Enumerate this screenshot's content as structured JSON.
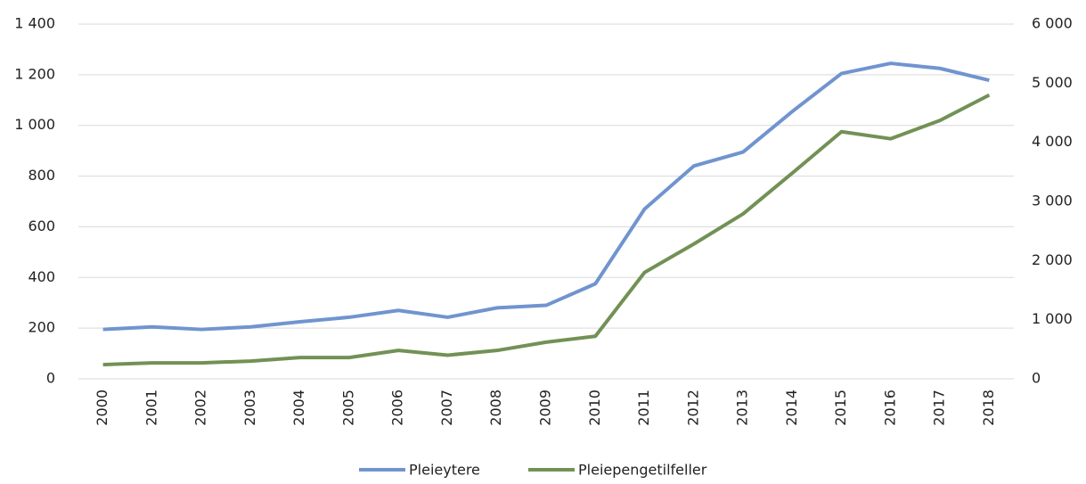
{
  "chart_data": {
    "type": "line",
    "categories": [
      "2000",
      "2001",
      "2002",
      "2003",
      "2004",
      "2005",
      "2006",
      "2007",
      "2008",
      "2009",
      "2010",
      "2011",
      "2012",
      "2013",
      "2014",
      "2015",
      "2016",
      "2017",
      "2018"
    ],
    "series": [
      {
        "name": "Pleieytere",
        "color": "#7094cf",
        "values": [
          195,
          205,
          195,
          205,
          225,
          243,
          270,
          243,
          280,
          290,
          375,
          670,
          840,
          895,
          1055,
          1205,
          1245,
          1225,
          1178
        ]
      },
      {
        "name": "Pleiepengetilfeller",
        "color": "#729155",
        "axis": "y2",
        "values": [
          240,
          270,
          270,
          300,
          360,
          360,
          480,
          400,
          480,
          620,
          720,
          1800,
          2280,
          2790,
          3480,
          4180,
          4060,
          4370,
          4800
        ]
      }
    ],
    "ylim": [
      0,
      1400
    ],
    "yticks": [
      0,
      200,
      400,
      600,
      800,
      {
        "value": 1000,
        "label": "1 000"
      },
      {
        "value": 1200,
        "label": "1 200"
      },
      {
        "value": 1400,
        "label": "1 400"
      }
    ],
    "y2lim": [
      0,
      6000
    ],
    "y2ticks": [
      0,
      {
        "value": 1000,
        "label": "1 000"
      },
      {
        "value": 2000,
        "label": "2 000"
      },
      {
        "value": 3000,
        "label": "3 000"
      },
      {
        "value": 4000,
        "label": "4 000"
      },
      {
        "value": 5000,
        "label": "5 000"
      },
      {
        "value": 6000,
        "label": "6 000"
      }
    ],
    "grid": true,
    "legend": "bottom"
  }
}
